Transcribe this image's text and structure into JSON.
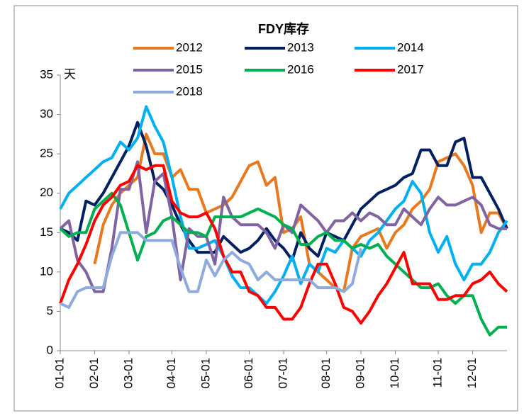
{
  "chart_data": {
    "type": "line",
    "title": "FDY库存",
    "y_label": "天",
    "categories": [
      "01-01",
      null,
      null,
      null,
      "02-01",
      null,
      null,
      null,
      "03-01",
      null,
      null,
      null,
      null,
      "04-01",
      null,
      null,
      null,
      "05-01",
      null,
      null,
      null,
      null,
      "06-01",
      null,
      null,
      null,
      "07-01",
      null,
      null,
      null,
      null,
      "08-01",
      null,
      null,
      null,
      "09-01",
      null,
      null,
      null,
      "10-01",
      null,
      null,
      null,
      null,
      "11-01",
      null,
      null,
      null,
      "12-01",
      null,
      null,
      null,
      null
    ],
    "ylim": [
      0,
      35
    ],
    "yticks": [
      0,
      5,
      10,
      15,
      20,
      25,
      30,
      35
    ],
    "grid": false,
    "series": [
      {
        "name": "2012",
        "color": "#e8791f",
        "values": [
          null,
          null,
          null,
          null,
          11,
          16,
          18.5,
          20,
          21,
          22,
          27.5,
          25,
          25,
          22,
          23,
          20.5,
          20.5,
          17.5,
          18,
          18.5,
          19.5,
          21.5,
          23.5,
          24,
          21,
          22,
          15,
          15.5,
          17,
          11,
          10,
          9,
          8,
          7.5,
          13,
          14.5,
          15,
          15.5,
          13,
          15,
          16,
          18,
          19,
          20.5,
          24,
          24.5,
          25,
          23.5,
          21,
          15,
          17.5,
          17.5,
          15.5
        ]
      },
      {
        "name": "2013",
        "color": "#002060",
        "values": [
          15.5,
          15,
          14,
          19,
          18.5,
          20,
          22,
          24,
          26,
          29,
          26,
          21.5,
          20.5,
          18.5,
          16,
          14,
          12.5,
          12.5,
          12.5,
          14.5,
          13.5,
          12.5,
          13,
          14,
          15.5,
          14,
          13,
          11.5,
          15,
          13,
          12,
          15,
          14.5,
          14,
          16,
          18,
          19,
          20,
          20.5,
          21,
          22,
          22.5,
          25.5,
          25.5,
          23.5,
          23.5,
          26.5,
          27,
          22,
          22,
          20,
          18,
          15.5
        ]
      },
      {
        "name": "2014",
        "color": "#00b0f0",
        "values": [
          18,
          20,
          21,
          22,
          23,
          24,
          24.5,
          26.5,
          25.5,
          27,
          31,
          28.5,
          26.5,
          22,
          17,
          13,
          13,
          13.5,
          14,
          12,
          9.5,
          8,
          8,
          7,
          6,
          7.5,
          9.5,
          12,
          8.5,
          11,
          10,
          13,
          12.5,
          14,
          13,
          12,
          14,
          15,
          16.5,
          18,
          19,
          21.5,
          20,
          15,
          12.5,
          14.5,
          11,
          9,
          11,
          11,
          12.5,
          15,
          16.5
        ]
      },
      {
        "name": "2015",
        "color": "#8064a2",
        "values": [
          15.5,
          16.5,
          11.5,
          10,
          7.5,
          7.5,
          13,
          20.5,
          20.5,
          24,
          15,
          21.5,
          22.5,
          17,
          9,
          15.5,
          14.5,
          14.5,
          11,
          19.5,
          17,
          16,
          16,
          16,
          15,
          13,
          16,
          15,
          18.5,
          17.5,
          16.5,
          15,
          16.5,
          16.5,
          17.5,
          16.5,
          17.5,
          17,
          16,
          16,
          18,
          17,
          16,
          18,
          19.5,
          18.5,
          18.5,
          19,
          19.5,
          18.5,
          16,
          15.5,
          15.5
        ]
      },
      {
        "name": "2016",
        "color": "#00b050",
        "values": [
          15.5,
          14.5,
          15,
          15,
          18,
          19,
          20,
          18.5,
          15,
          11.5,
          14.5,
          15,
          16.5,
          17,
          16,
          15,
          15,
          14.5,
          17,
          17,
          17,
          17,
          17.5,
          18,
          17.5,
          17,
          16,
          15.5,
          13.5,
          13.5,
          14.5,
          15,
          14,
          14,
          13,
          13.5,
          13,
          13.5,
          12,
          11,
          10,
          9,
          8,
          8,
          8.5,
          7,
          6,
          7,
          7,
          4,
          2,
          3,
          3
        ]
      },
      {
        "name": "2017",
        "color": "#ff0000",
        "values": [
          6,
          9,
          11,
          13.5,
          16.5,
          18.5,
          19.5,
          21,
          21.5,
          23.5,
          23,
          23.5,
          23.5,
          19,
          17.5,
          17,
          17,
          17.5,
          15.5,
          12,
          10,
          10,
          7.5,
          7,
          5.5,
          5.5,
          4,
          4,
          5.5,
          8.5,
          11,
          11,
          8.5,
          5.5,
          5,
          3.5,
          5,
          7,
          8.5,
          10.5,
          12.5,
          8.5,
          8.5,
          8.5,
          6.5,
          6.5,
          7,
          7,
          8.5,
          9,
          10,
          8.5,
          7.5
        ]
      },
      {
        "name": "2018",
        "color": "#8faadc",
        "values": [
          6,
          5.5,
          7.5,
          8,
          8,
          8,
          12,
          15,
          15,
          15,
          14,
          14,
          14,
          14,
          10.5,
          7.5,
          7.5,
          11.5,
          9.5,
          11.5,
          12.5,
          11.5,
          11,
          9,
          10,
          9,
          9,
          9,
          9,
          9,
          8,
          8,
          8,
          7.5,
          8.5,
          13,
          null,
          null,
          null,
          null,
          null,
          null,
          null,
          null,
          null,
          null,
          null,
          null,
          null,
          null,
          null,
          null,
          null
        ]
      }
    ]
  }
}
